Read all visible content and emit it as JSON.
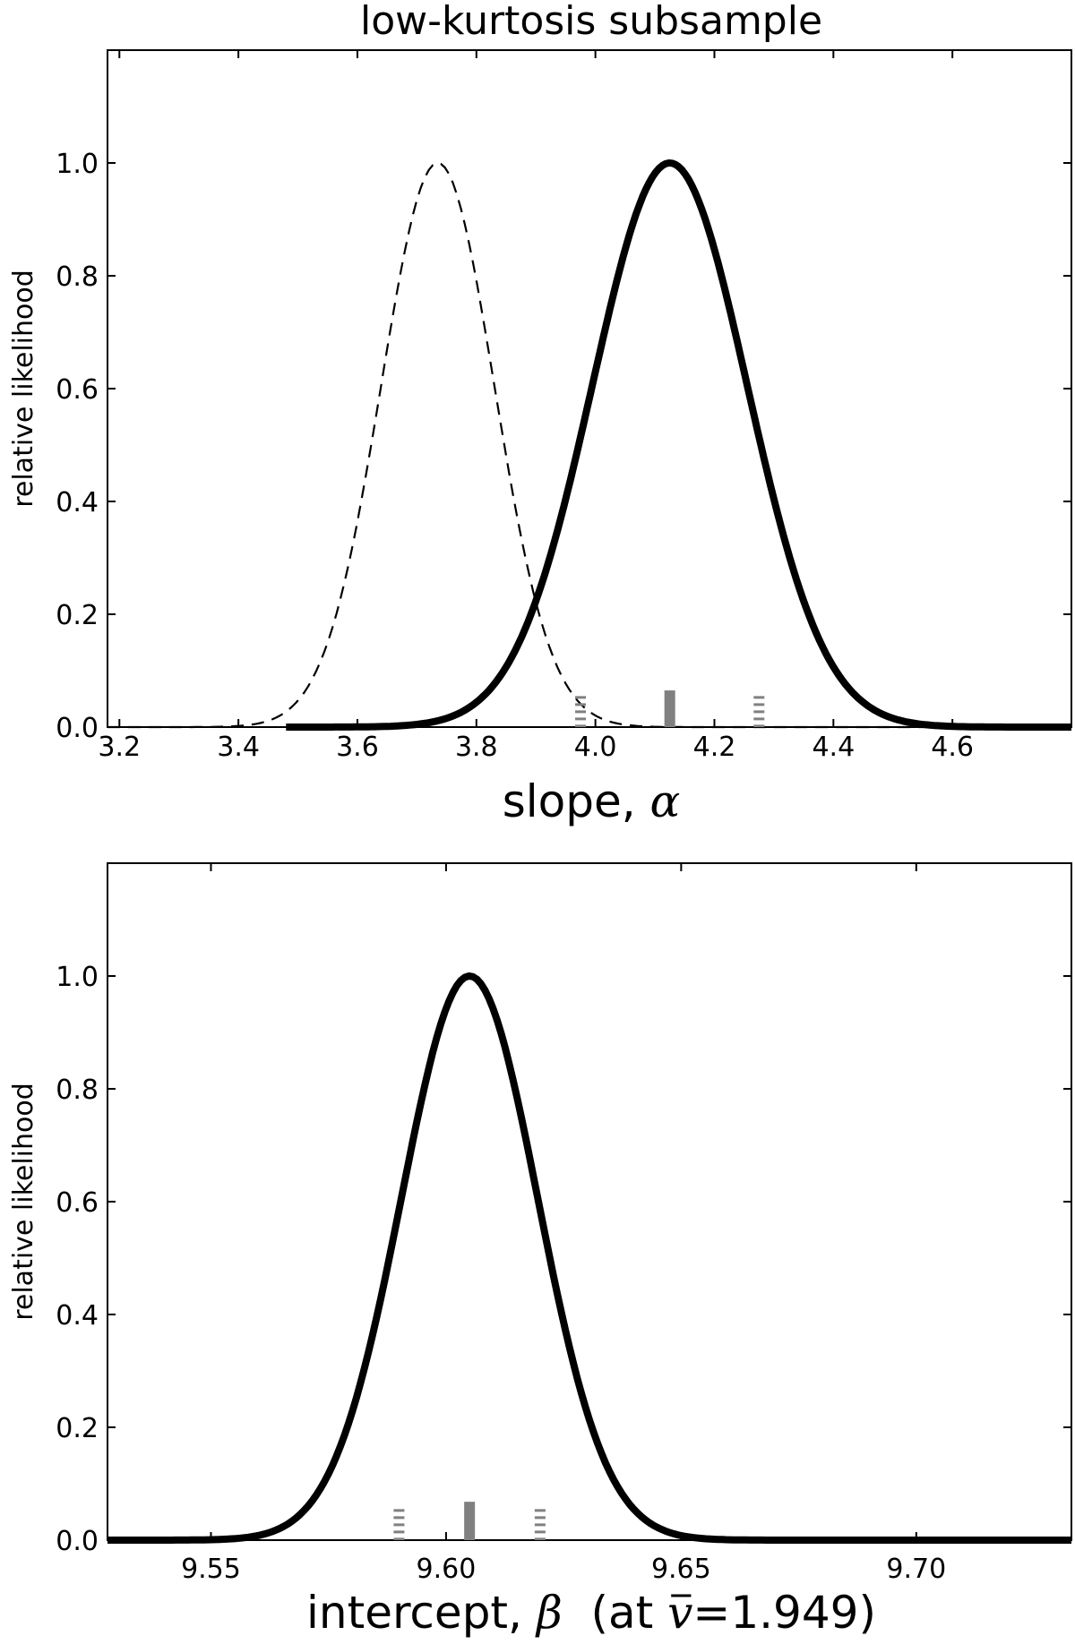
{
  "chart_data": [
    {
      "type": "line",
      "title": "low-kurtosis subsample",
      "xlabel": "slope, ",
      "xlabel_symbol": "α",
      "ylabel": "relative likelihood",
      "xlim": [
        3.18,
        4.8
      ],
      "ylim": [
        0,
        1.2
      ],
      "xticks": [
        "3.2",
        "3.4",
        "3.6",
        "3.8",
        "4.0",
        "4.2",
        "4.4",
        "4.6"
      ],
      "yticks": [
        "0.0",
        "0.2",
        "0.4",
        "0.6",
        "0.8",
        "1.0"
      ],
      "grid": false,
      "series": [
        {
          "style": "solid-thick",
          "peak": 4.125,
          "sigma": 0.13,
          "x_range": [
            3.48,
            4.8
          ]
        },
        {
          "style": "dashed",
          "peak": 3.735,
          "sigma": 0.095,
          "x_range": [
            3.18,
            4.8
          ]
        }
      ],
      "markers": [
        {
          "kind": "solid-bar",
          "x": 4.125,
          "height": 0.065
        },
        {
          "kind": "dashed-bar",
          "x": 3.975,
          "height": 0.055
        },
        {
          "kind": "dashed-bar",
          "x": 4.275,
          "height": 0.055
        }
      ]
    },
    {
      "type": "line",
      "title": "",
      "xlabel": "intercept, ",
      "xlabel_symbol": "β",
      "xlabel_suffix": "  (at ",
      "xlabel_vbar": "v",
      "xlabel_value": "=1.949)",
      "ylabel": "relative likelihood",
      "xlim": [
        9.528,
        9.733
      ],
      "ylim": [
        0,
        1.2
      ],
      "xticks": [
        "9.55",
        "9.60",
        "9.65",
        "9.70"
      ],
      "yticks": [
        "0.0",
        "0.2",
        "0.4",
        "0.6",
        "0.8",
        "1.0"
      ],
      "grid": false,
      "series": [
        {
          "style": "solid-thick",
          "peak": 9.605,
          "sigma": 0.0145,
          "x_range": [
            9.528,
            9.733
          ]
        }
      ],
      "markers": [
        {
          "kind": "solid-bar",
          "x": 9.605,
          "height": 0.068
        },
        {
          "kind": "dashed-bar",
          "x": 9.59,
          "height": 0.055
        },
        {
          "kind": "dashed-bar",
          "x": 9.62,
          "height": 0.055
        }
      ]
    }
  ]
}
